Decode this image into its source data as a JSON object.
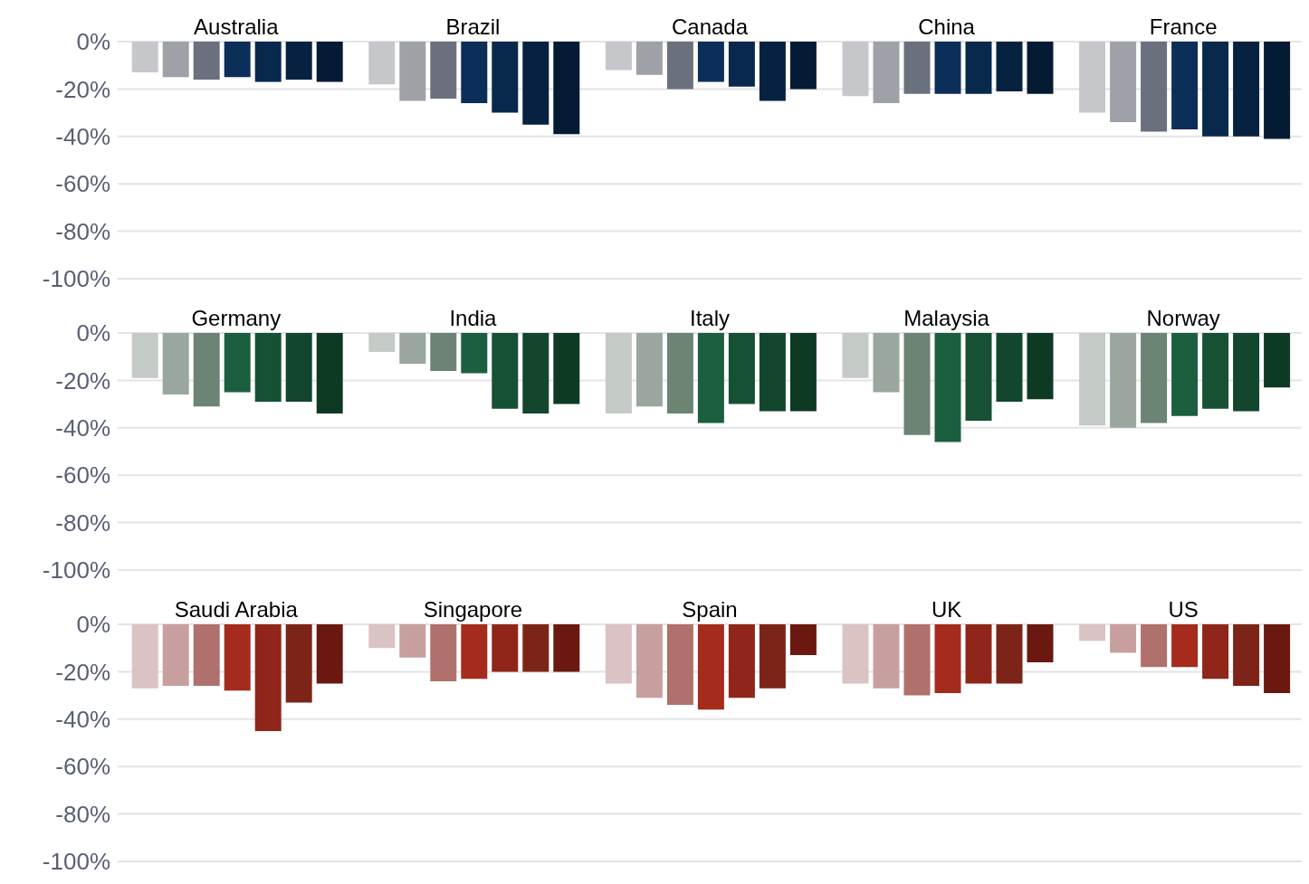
{
  "chart_data": [
    {
      "type": "bar",
      "categories": [
        "Australia",
        "Brazil",
        "Canada",
        "China",
        "France"
      ],
      "series": [
        {
          "color": "#c6c7cb",
          "values": [
            -13,
            -18,
            -12,
            -23,
            -30
          ]
        },
        {
          "color": "#9ea1a8",
          "values": [
            -15,
            -25,
            -14,
            -26,
            -34
          ]
        },
        {
          "color": "#6b707e",
          "values": [
            -16,
            -24,
            -20,
            -22,
            -38
          ]
        },
        {
          "color": "#0b2f58",
          "values": [
            -15,
            -26,
            -17,
            -22,
            -37
          ]
        },
        {
          "color": "#08294c",
          "values": [
            -17,
            -30,
            -19,
            -22,
            -40
          ]
        },
        {
          "color": "#072140",
          "values": [
            -16,
            -35,
            -25,
            -21,
            -40
          ]
        },
        {
          "color": "#051b34",
          "values": [
            -17,
            -39,
            -20,
            -22,
            -41
          ]
        }
      ],
      "ylim": [
        -100,
        0
      ],
      "yticks": [
        {
          "value": 0,
          "label": "0%"
        },
        {
          "value": -20,
          "label": "-20%"
        },
        {
          "value": -40,
          "label": "-40%"
        },
        {
          "value": -60,
          "label": "-60%"
        },
        {
          "value": -80,
          "label": "-80%"
        },
        {
          "value": -100,
          "label": "-100%"
        }
      ],
      "grid": "y",
      "legend": false
    },
    {
      "type": "bar",
      "categories": [
        "Germany",
        "India",
        "Italy",
        "Malaysia",
        "Norway"
      ],
      "series": [
        {
          "color": "#c4cac6",
          "values": [
            -19,
            -8,
            -34,
            -19,
            -39
          ]
        },
        {
          "color": "#99a79e",
          "values": [
            -26,
            -13,
            -31,
            -25,
            -40
          ]
        },
        {
          "color": "#6b8473",
          "values": [
            -31,
            -16,
            -34,
            -43,
            -38
          ]
        },
        {
          "color": "#1b5f3f",
          "values": [
            -25,
            -17,
            -38,
            -46,
            -35
          ]
        },
        {
          "color": "#165134",
          "values": [
            -29,
            -32,
            -30,
            -37,
            -32
          ]
        },
        {
          "color": "#12462d",
          "values": [
            -29,
            -34,
            -33,
            -29,
            -33
          ]
        },
        {
          "color": "#0e3a24",
          "values": [
            -34,
            -30,
            -33,
            -28,
            -23
          ]
        }
      ],
      "ylim": [
        -100,
        0
      ],
      "yticks": [
        {
          "value": 0,
          "label": "0%"
        },
        {
          "value": -20,
          "label": "-20%"
        },
        {
          "value": -40,
          "label": "-40%"
        },
        {
          "value": -60,
          "label": "-60%"
        },
        {
          "value": -80,
          "label": "-80%"
        },
        {
          "value": -100,
          "label": "-100%"
        }
      ],
      "grid": "y",
      "legend": false
    },
    {
      "type": "bar",
      "categories": [
        "Saudi Arabia",
        "Singapore",
        "Spain",
        "UK",
        "US"
      ],
      "series": [
        {
          "color": "#dbc2c3",
          "values": [
            -27,
            -10,
            -25,
            -25,
            -7
          ]
        },
        {
          "color": "#c89f9f",
          "values": [
            -26,
            -14,
            -31,
            -27,
            -12
          ]
        },
        {
          "color": "#b0706c",
          "values": [
            -26,
            -24,
            -34,
            -30,
            -18
          ]
        },
        {
          "color": "#a52b1d",
          "values": [
            -28,
            -23,
            -36,
            -29,
            -18
          ]
        },
        {
          "color": "#902519",
          "values": [
            -45,
            -20,
            -31,
            -25,
            -23
          ]
        },
        {
          "color": "#7d2418",
          "values": [
            -33,
            -20,
            -27,
            -25,
            -26
          ]
        },
        {
          "color": "#6a1810",
          "values": [
            -25,
            -20,
            -13,
            -16,
            -29
          ]
        }
      ],
      "ylim": [
        -100,
        0
      ],
      "yticks": [
        {
          "value": 0,
          "label": "0%"
        },
        {
          "value": -20,
          "label": "-20%"
        },
        {
          "value": -40,
          "label": "-40%"
        },
        {
          "value": -60,
          "label": "-60%"
        },
        {
          "value": -80,
          "label": "-80%"
        },
        {
          "value": -100,
          "label": "-100%"
        }
      ],
      "grid": "y",
      "legend": false
    }
  ]
}
